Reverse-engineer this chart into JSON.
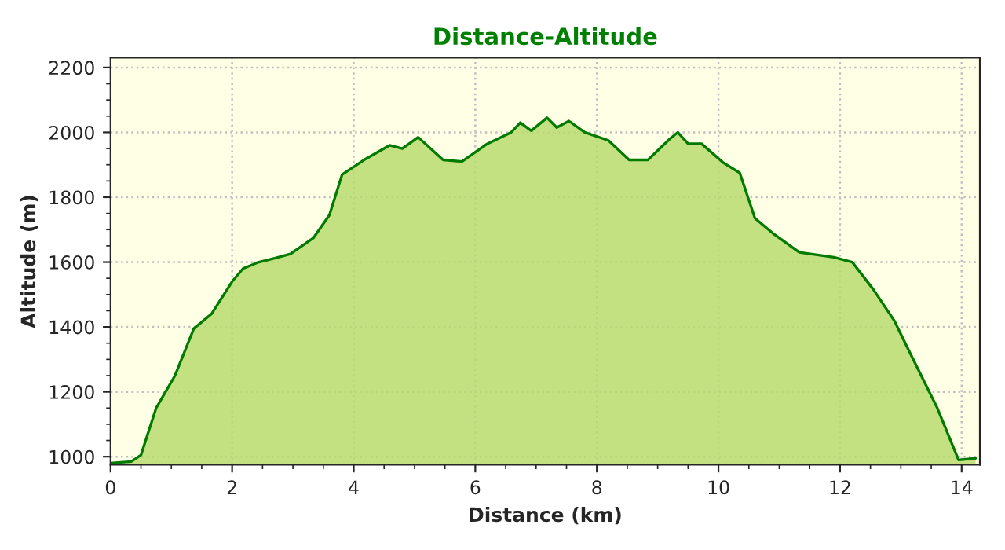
{
  "chart_data": {
    "type": "area",
    "title": "Distance-Altitude",
    "xlabel": "Distance (km)",
    "ylabel": "Altitude (m)",
    "x": [
      0,
      0.34,
      0.5,
      0.75,
      1.06,
      1.37,
      1.66,
      2.0,
      2.18,
      2.44,
      2.7,
      2.96,
      3.34,
      3.6,
      3.81,
      4.17,
      4.59,
      4.8,
      5.06,
      5.47,
      5.78,
      6.2,
      6.59,
      6.74,
      6.92,
      7.18,
      7.34,
      7.54,
      7.8,
      8.19,
      8.53,
      8.84,
      9.2,
      9.33,
      9.5,
      9.72,
      10.09,
      10.35,
      10.6,
      10.92,
      11.33,
      11.9,
      12.2,
      12.55,
      12.89,
      13.15,
      13.6,
      13.95,
      14.23
    ],
    "series": [
      {
        "color": "#007a00",
        "values": [
          980,
          985,
          1005,
          1150,
          1250,
          1395,
          1440,
          1540,
          1580,
          1600,
          1612,
          1625,
          1675,
          1745,
          1870,
          1915,
          1960,
          1950,
          1985,
          1915,
          1910,
          1965,
          2000,
          2030,
          2005,
          2045,
          2015,
          2035,
          2000,
          1975,
          1915,
          1915,
          1980,
          2000,
          1965,
          1965,
          1905,
          1875,
          1735,
          1685,
          1630,
          1615,
          1600,
          1515,
          1420,
          1320,
          1150,
          990,
          995
        ]
      }
    ],
    "xlim": [
      0,
      14.3
    ],
    "ylim": [
      975,
      2230
    ],
    "xticks": [
      0,
      2,
      4,
      6,
      8,
      10,
      12,
      14
    ],
    "yticks": [
      1000,
      1200,
      1400,
      1600,
      1800,
      2000,
      2200
    ],
    "grid": true,
    "legend": false
  }
}
